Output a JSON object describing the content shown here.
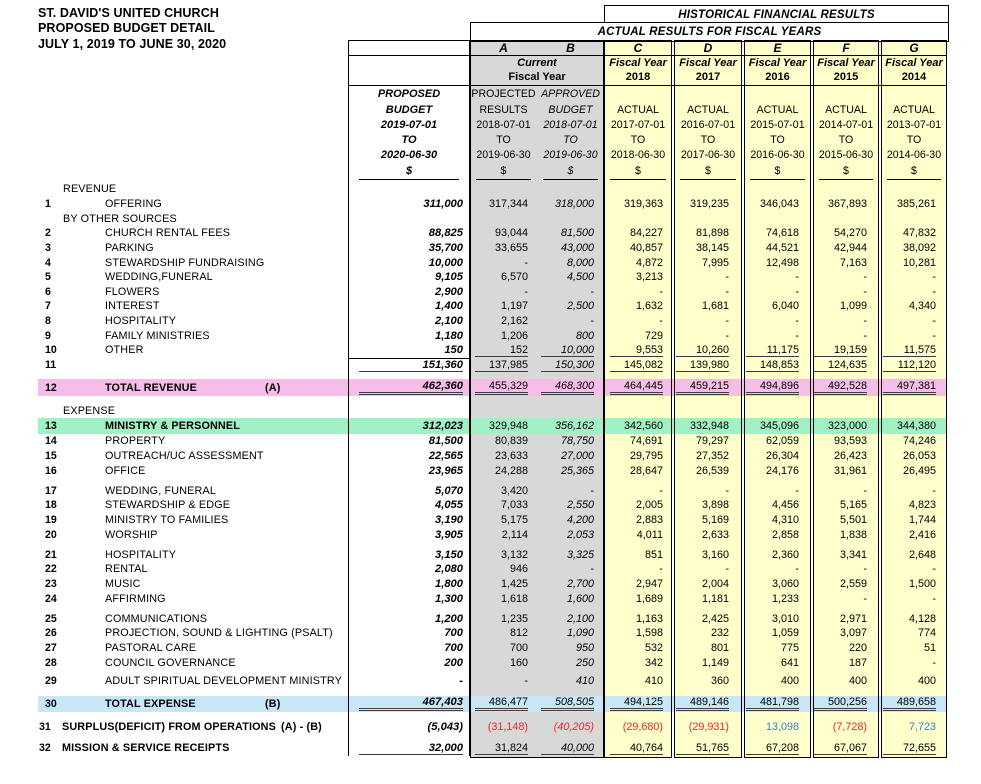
{
  "titles": {
    "line1": "ST. DAVID'S UNITED CHURCH",
    "line2": "PROPOSED BUDGET DETAIL",
    "line3": "JULY 1, 2019 TO JUNE 30, 2020"
  },
  "banners": {
    "historical": "HISTORICAL FINANCIAL RESULTS",
    "actual": "ACTUAL RESULTS FOR FISCAL YEARS"
  },
  "col_letters": [
    "A",
    "B",
    "C",
    "D",
    "E",
    "F",
    "G"
  ],
  "current_group": {
    "line1": "Current",
    "line2": "Fiscal Year"
  },
  "fiscal_groups": [
    {
      "line1": "Fiscal Year",
      "line2": "2018"
    },
    {
      "line1": "Fiscal Year",
      "line2": "2017"
    },
    {
      "line1": "Fiscal Year",
      "line2": "2016"
    },
    {
      "line1": "Fiscal Year",
      "line2": "2015"
    },
    {
      "line1": "Fiscal Year",
      "line2": "2014"
    }
  ],
  "col_headers": {
    "proposed": [
      "PROPOSED",
      "BUDGET",
      "2019-07-01",
      "TO",
      "2020-06-30",
      "$"
    ],
    "a": [
      "PROJECTED",
      "RESULTS",
      "2018-07-01",
      "TO",
      "2019-06-30",
      "$"
    ],
    "b": [
      "APPROVED",
      "BUDGET",
      "2018-07-01",
      "TO",
      "2019-06-30",
      "$"
    ],
    "c": [
      "ACTUAL",
      "2017-07-01",
      "TO",
      "2018-06-30",
      "$"
    ],
    "d": [
      "ACTUAL",
      "2016-07-01",
      "TO",
      "2017-06-30",
      "$"
    ],
    "e": [
      "ACTUAL",
      "2015-07-01",
      "TO",
      "2016-06-30",
      "$"
    ],
    "f": [
      "ACTUAL",
      "2014-07-01",
      "TO",
      "2015-06-30",
      "$"
    ],
    "g": [
      "ACTUAL",
      "2013-07-01",
      "TO",
      "2014-06-30",
      "$"
    ]
  },
  "colors": {
    "actual_col_bg": "#FFFFCC",
    "current_col_bg": "#D8D8D8",
    "total_revenue_bg": "#F7BDE9",
    "ministry_bg": "#9FF2C6",
    "total_expense_bg": "#C7E7F9",
    "negative_text": "#F2262E",
    "positive_text": "#3A7DC9"
  },
  "rows": [
    {
      "t": "sec",
      "label": "REVENUE"
    },
    {
      "t": "item",
      "n": "1",
      "label": "OFFERING",
      "v": [
        "311,000",
        "317,344",
        "318,000",
        "319,363",
        "319,235",
        "346,043",
        "367,893",
        "385,261"
      ]
    },
    {
      "t": "sec",
      "label": "BY OTHER SOURCES"
    },
    {
      "t": "item",
      "n": "2",
      "label": "CHURCH RENTAL FEES",
      "v": [
        "88,825",
        "93,044",
        "81,500",
        "84,227",
        "81,898",
        "74,618",
        "54,270",
        "47,832"
      ]
    },
    {
      "t": "item",
      "n": "3",
      "label": "PARKING",
      "v": [
        "35,700",
        "33,655",
        "43,000",
        "40,857",
        "38,145",
        "44,521",
        "42,944",
        "38,092"
      ]
    },
    {
      "t": "item",
      "n": "4",
      "label": "STEWARDSHIP FUNDRAISING",
      "v": [
        "10,000",
        "-",
        "8,000",
        "4,872",
        "7,995",
        "12,498",
        "7,163",
        "10,281"
      ]
    },
    {
      "t": "item",
      "n": "5",
      "label": "WEDDING,FUNERAL",
      "v": [
        "9,105",
        "6,570",
        "4,500",
        "3,213",
        "-",
        "-",
        "-",
        "-"
      ]
    },
    {
      "t": "item",
      "n": "6",
      "label": "FLOWERS",
      "v": [
        "2,900",
        "-",
        "-",
        "-",
        "-",
        "-",
        "-",
        "-"
      ]
    },
    {
      "t": "item",
      "n": "7",
      "label": "INTEREST",
      "v": [
        "1,400",
        "1,197",
        "2,500",
        "1,632",
        "1,681",
        "6,040",
        "1,099",
        "4,340"
      ]
    },
    {
      "t": "item",
      "n": "8",
      "label": "HOSPITALITY",
      "v": [
        "2,100",
        "2,162",
        "-",
        "-",
        "-",
        "-",
        "-",
        "-"
      ]
    },
    {
      "t": "item",
      "n": "9",
      "label": "FAMILY MINISTRIES",
      "v": [
        "1,180",
        "1,206",
        "800",
        "729",
        "-",
        "-",
        "-",
        "-"
      ]
    },
    {
      "t": "item",
      "n": "10",
      "label": "OTHER",
      "v": [
        "150",
        "152",
        "10,000",
        "9,553",
        "10,260",
        "11,175",
        "19,159",
        "11,575"
      ],
      "ul": "s",
      "ulskip0": true
    },
    {
      "t": "item",
      "n": "11",
      "label": "",
      "v": [
        "151,360",
        "137,985",
        "150,300",
        "145,082",
        "139,980",
        "148,853",
        "124,635",
        "112,120"
      ],
      "ul": "s",
      "rule": true,
      "gap": 7
    },
    {
      "t": "tot",
      "n": "12",
      "label": "TOTAL REVENUE",
      "ref": "(A)",
      "v": [
        "462,360",
        "455,329",
        "468,300",
        "464,445",
        "459,215",
        "494,896",
        "492,528",
        "497,381"
      ],
      "hl": "total_revenue_bg",
      "ul": "d",
      "h": 17,
      "gap": 7.5
    },
    {
      "t": "sec",
      "label": "EXPENSE"
    },
    {
      "t": "tot",
      "n": "13",
      "label": "MINISTRY & PERSONNEL",
      "v": [
        "312,023",
        "329,948",
        "356,162",
        "342,560",
        "332,948",
        "345,096",
        "323,000",
        "344,380"
      ],
      "hl": "ministry_bg",
      "h": 15.5
    },
    {
      "t": "item",
      "n": "14",
      "label": "PROPERTY",
      "v": [
        "81,500",
        "80,839",
        "78,750",
        "74,691",
        "79,297",
        "62,059",
        "93,593",
        "74,246"
      ]
    },
    {
      "t": "item",
      "n": "15",
      "label": "OUTREACH/UC ASSESSMENT",
      "v": [
        "22,565",
        "23,633",
        "27,000",
        "29,795",
        "27,352",
        "26,304",
        "26,423",
        "26,053"
      ]
    },
    {
      "t": "item",
      "n": "16",
      "label": "OFFICE",
      "v": [
        "23,965",
        "24,288",
        "25,365",
        "28,647",
        "26,539",
        "24,176",
        "31,961",
        "26,495"
      ],
      "gap": 5.5
    },
    {
      "t": "item",
      "n": "17",
      "label": "WEDDING, FUNERAL",
      "v": [
        "5,070",
        "3,420",
        "-",
        "-",
        "-",
        "-",
        "-",
        "-"
      ]
    },
    {
      "t": "item",
      "n": "18",
      "label": "STEWARDSHIP & EDGE",
      "v": [
        "4,055",
        "7,033",
        "2,550",
        "2,005",
        "3,898",
        "4,456",
        "5,165",
        "4,823"
      ]
    },
    {
      "t": "item",
      "n": "19",
      "label": "MINISTRY TO FAMILIES",
      "v": [
        "3,190",
        "5,175",
        "4,200",
        "2,883",
        "5,169",
        "4,310",
        "5,501",
        "1,744"
      ]
    },
    {
      "t": "item",
      "n": "20",
      "label": "WORSHIP",
      "v": [
        "3,905",
        "2,114",
        "2,053",
        "4,011",
        "2,633",
        "2,858",
        "1,838",
        "2,416"
      ],
      "gap": 5.5
    },
    {
      "t": "item",
      "n": "21",
      "label": "HOSPITALITY",
      "v": [
        "3,150",
        "3,132",
        "3,325",
        "851",
        "3,160",
        "2,360",
        "3,341",
        "2,648"
      ]
    },
    {
      "t": "item",
      "n": "22",
      "label": "RENTAL",
      "v": [
        "2,080",
        "946",
        "-",
        "-",
        "-",
        "-",
        "-",
        "-"
      ]
    },
    {
      "t": "item",
      "n": "23",
      "label": "MUSIC",
      "v": [
        "1,800",
        "1,425",
        "2,700",
        "2,947",
        "2,004",
        "3,060",
        "2,559",
        "1,500"
      ]
    },
    {
      "t": "item",
      "n": "24",
      "label": "AFFIRMING",
      "v": [
        "1,300",
        "1,618",
        "1,600",
        "1,689",
        "1,181",
        "1,233",
        "-",
        "-"
      ],
      "gap": 5.5
    },
    {
      "t": "item",
      "n": "25",
      "label": "COMMUNICATIONS",
      "v": [
        "1,200",
        "1,235",
        "2,100",
        "1,163",
        "2,425",
        "3,010",
        "2,971",
        "4,128"
      ]
    },
    {
      "t": "item",
      "n": "26",
      "label": "PROJECTION, SOUND & LIGHTING (PSALT)",
      "v": [
        "700",
        "812",
        "1,090",
        "1,598",
        "232",
        "1,059",
        "3,097",
        "774"
      ]
    },
    {
      "t": "item",
      "n": "27",
      "label": "PASTORAL CARE",
      "v": [
        "700",
        "700",
        "950",
        "532",
        "801",
        "775",
        "220",
        "51"
      ]
    },
    {
      "t": "item",
      "n": "28",
      "label": "COUNCIL GOVERNANCE",
      "v": [
        "200",
        "160",
        "250",
        "342",
        "1,149",
        "641",
        "187",
        "-"
      ],
      "gap": 4
    },
    {
      "t": "item",
      "n": "29",
      "label": "ADULT SPIRITUAL DEVELOPMENT MINISTRY",
      "v": [
        "-",
        "-",
        "410",
        "410",
        "360",
        "400",
        "400",
        "400"
      ],
      "gap": 7
    },
    {
      "t": "tot",
      "n": "30",
      "label": "TOTAL EXPENSE",
      "ref": "(B)",
      "v": [
        "467,403",
        "486,477",
        "508,505",
        "494,125",
        "489,146",
        "481,798",
        "500,256",
        "489,658"
      ],
      "hl": "total_expense_bg",
      "ul": "d",
      "h": 16,
      "gap": 7
    },
    {
      "t": "sum",
      "n": "31",
      "label": "SURPLUS(DEFICIT) FROM OPERATIONS",
      "ref": "(A) - (B)",
      "v": [
        "(5,043)",
        "(31,148)",
        "(40,205)",
        "(29,680)",
        "(29,931)",
        "13,098",
        "(7,728)",
        "7,723"
      ],
      "vc": [
        "k",
        "r",
        "r",
        "r",
        "r",
        "b",
        "r",
        "b"
      ],
      "h": 16,
      "gap": 6
    },
    {
      "t": "sum",
      "n": "32",
      "label": "MISSION & SERVICE RECEIPTS",
      "v": [
        "32,000",
        "31,824",
        "40,000",
        "40,764",
        "51,765",
        "67,208",
        "67,067",
        "72,655"
      ],
      "ul": "s",
      "h": 15
    }
  ]
}
